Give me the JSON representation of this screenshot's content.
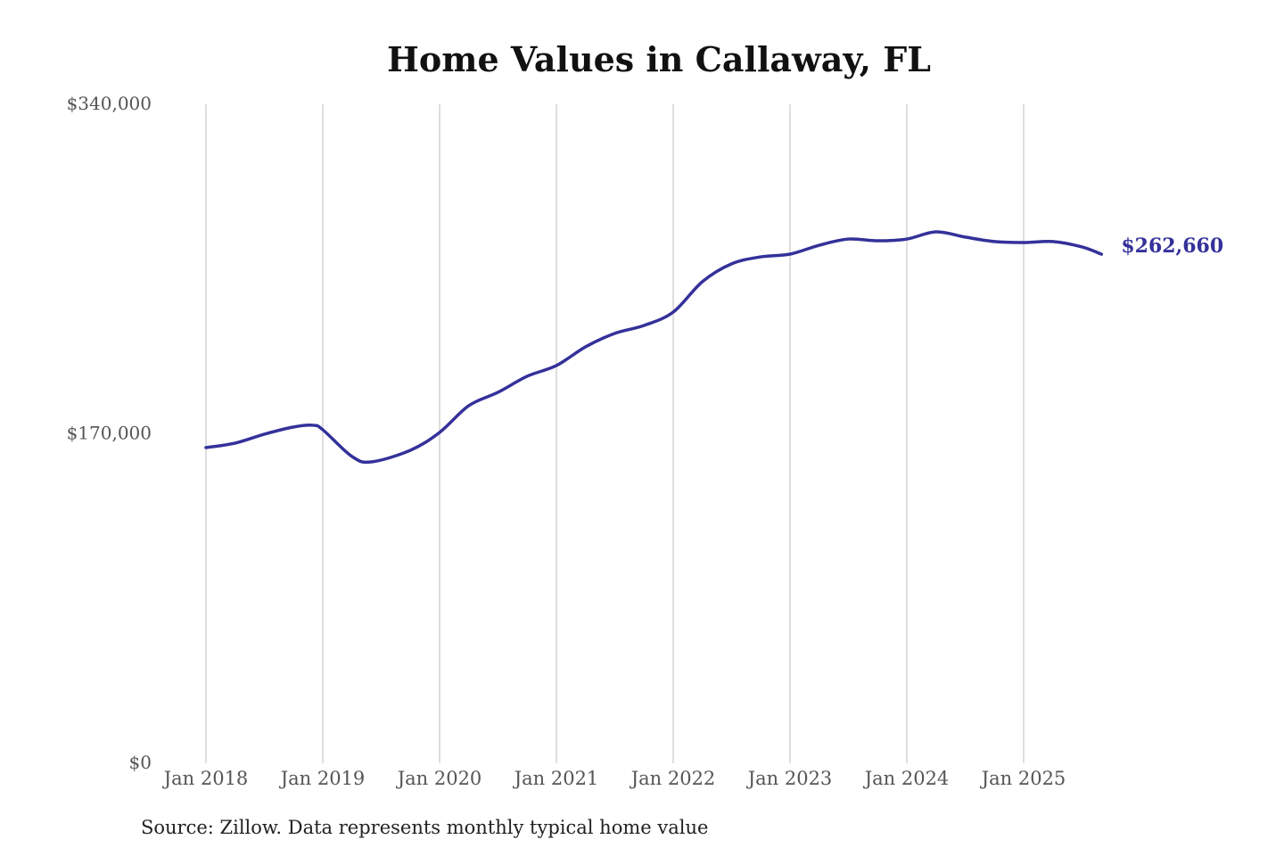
{
  "chart_data": {
    "type": "line",
    "title": "Home Values in Callaway, FL",
    "xlabel": "",
    "ylabel": "",
    "ylim": [
      0,
      340000
    ],
    "y_ticks": [
      0,
      170000,
      340000
    ],
    "y_tick_labels": [
      "$0",
      "$170,000",
      "$340,000"
    ],
    "x_tick_labels": [
      "Jan 2018",
      "Jan 2019",
      "Jan 2020",
      "Jan 2021",
      "Jan 2022",
      "Jan 2023",
      "Jan 2024",
      "Jan 2025"
    ],
    "grid": "vertical lines at each January",
    "line_color": "#34319a",
    "end_label": "$262,660",
    "series": [
      {
        "x": [
          "2018-01",
          "2018-04",
          "2018-07",
          "2018-10",
          "2018-12",
          "2019-01",
          "2019-04",
          "2019-06",
          "2019-10",
          "2020-01",
          "2020-04",
          "2020-07",
          "2020-10",
          "2021-01",
          "2021-04",
          "2021-07",
          "2021-10",
          "2022-01",
          "2022-04",
          "2022-07",
          "2022-10",
          "2023-01",
          "2023-04",
          "2023-07",
          "2023-10",
          "2024-01",
          "2024-04",
          "2024-07",
          "2024-10",
          "2025-01",
          "2025-04",
          "2025-07",
          "2025-09"
        ],
        "values": [
          162900,
          165200,
          169800,
          173500,
          174400,
          172100,
          158300,
          155500,
          161500,
          170700,
          184500,
          191400,
          199700,
          205200,
          214900,
          221800,
          225900,
          232800,
          248500,
          257700,
          261300,
          262700,
          267300,
          270500,
          269600,
          270500,
          274200,
          271500,
          269200,
          268700,
          269200,
          266400,
          262660
        ]
      }
    ]
  },
  "source": "Source: Zillow. Data represents monthly typical home value"
}
